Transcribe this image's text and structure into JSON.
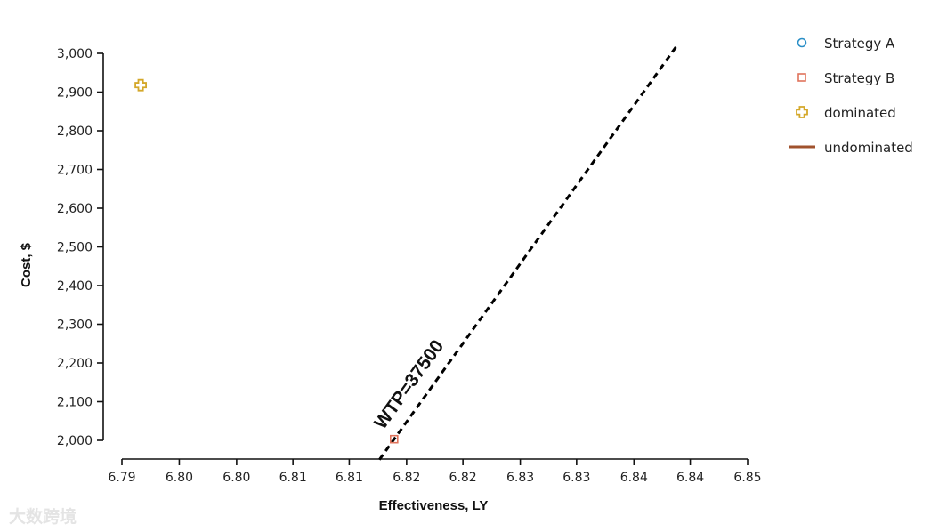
{
  "chart_data": {
    "type": "scatter",
    "title": "",
    "xlabel": "Effectiveness, LY",
    "ylabel": "Cost, $",
    "xlim": [
      6.79,
      6.85
    ],
    "ylim": [
      1950,
      3000
    ],
    "x_ticks": [
      6.79,
      6.7975,
      6.805,
      6.8125,
      6.82,
      6.8275,
      6.835,
      6.8425,
      6.85
    ],
    "x_tick_labels": [
      "6.79",
      "6.80",
      "6.80",
      "6.81",
      "6.81",
      "6.82",
      "6.82",
      "6.83",
      "6.83",
      "6.84",
      "6.84",
      "6.85"
    ],
    "x_tick_values": [
      6.79,
      6.7955,
      6.801,
      6.8064,
      6.8118,
      6.8173,
      6.8227,
      6.8282,
      6.8336,
      6.8391,
      6.8445,
      6.85
    ],
    "y_ticks": [
      2000,
      2100,
      2200,
      2300,
      2400,
      2500,
      2600,
      2700,
      2800,
      2900,
      3000
    ],
    "y_tick_labels": [
      "2,000",
      "2,100",
      "2,200",
      "2,300",
      "2,400",
      "2,500",
      "2,600",
      "2,700",
      "2,800",
      "2,900",
      "3,000"
    ],
    "series": [
      {
        "name": "Strategy A",
        "marker": "circle",
        "color": "#2a8fc7",
        "points": []
      },
      {
        "name": "Strategy B",
        "marker": "square",
        "color": "#e0735c",
        "points": [
          [
            6.8161,
            2003
          ]
        ]
      },
      {
        "name": "dominated",
        "marker": "plus",
        "color": "#d4a82a",
        "points": [
          [
            6.7918,
            2918
          ]
        ]
      },
      {
        "name": "undominated",
        "marker": "line",
        "color": "#a0522d",
        "points": []
      }
    ],
    "wtp_line": {
      "label": "WTP=37500",
      "wtp": 37500,
      "anchor": [
        6.8161,
        2003
      ],
      "style": "dashed",
      "color": "#000000"
    },
    "legend_position": "top-right",
    "grid": false
  },
  "watermark": "大数跨境"
}
